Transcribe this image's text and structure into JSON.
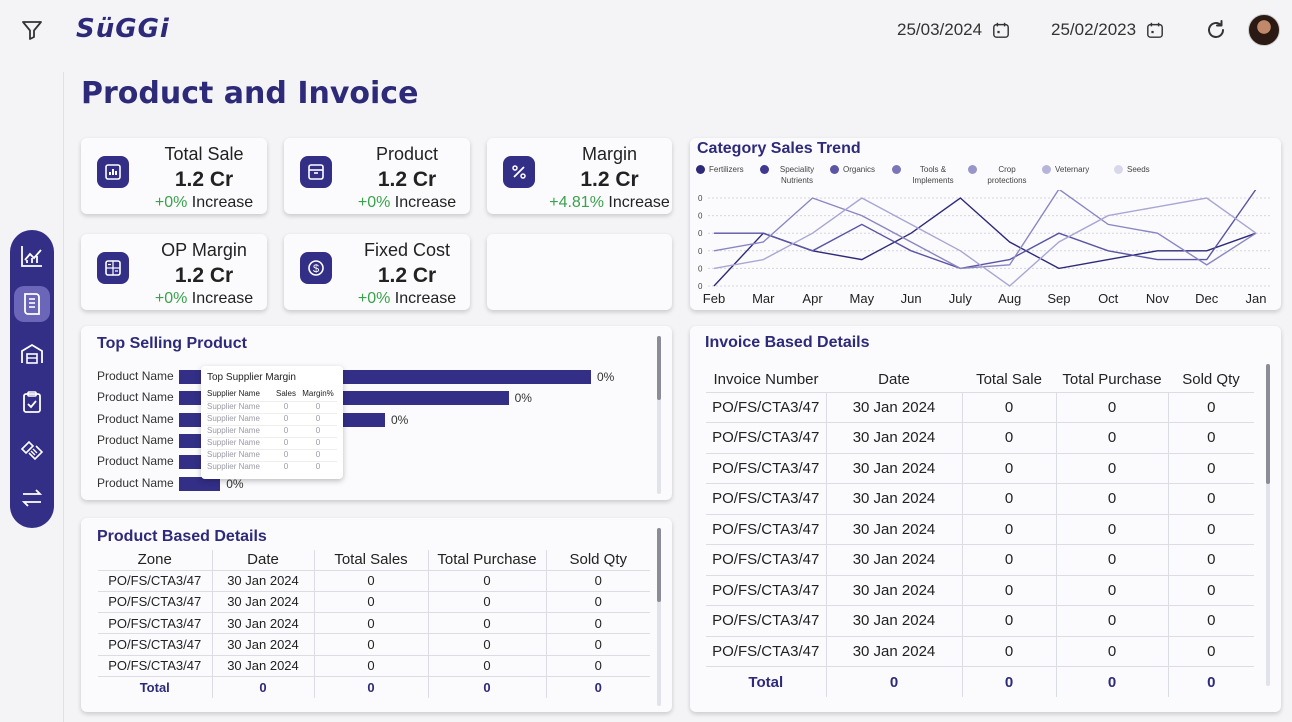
{
  "header": {
    "logo": "SüGGi",
    "date_from": "25/03/2024",
    "date_to": "25/02/2023"
  },
  "page": {
    "title": "Product and Invoice"
  },
  "sidebar": {
    "items": [
      {
        "icon": "analytics-icon"
      },
      {
        "icon": "document-icon",
        "active": true
      },
      {
        "icon": "warehouse-icon"
      },
      {
        "icon": "clipboard-check-icon"
      },
      {
        "icon": "handshake-icon"
      },
      {
        "icon": "transfer-icon"
      }
    ]
  },
  "kpis": [
    {
      "title": "Total Sale",
      "value": "1.2 Cr",
      "change": "+0%",
      "change_label": "Increase",
      "icon": "bar-chart-icon"
    },
    {
      "title": "Product",
      "value": "1.2 Cr",
      "change": "+0%",
      "change_label": "Increase",
      "icon": "archive-icon"
    },
    {
      "title": "Margin",
      "value": "1.2 Cr",
      "change": "+4.81%",
      "change_label": "Increase",
      "icon": "percent-icon"
    },
    {
      "title": "OP Margin",
      "value": "1.2 Cr",
      "change": "+0%",
      "change_label": "Increase",
      "icon": "calculator-icon"
    },
    {
      "title": "Fixed Cost",
      "value": "1.2 Cr",
      "change": "+0%",
      "change_label": "Increase",
      "icon": "dollar-coin-icon"
    }
  ],
  "category_trend": {
    "title": "Category Sales Trend",
    "legend": [
      {
        "label": "Fertilizers",
        "color": "#2e2a7a"
      },
      {
        "label": "Speciality Nutrients",
        "color": "#3f3a90"
      },
      {
        "label": "Organics",
        "color": "#5a55a4"
      },
      {
        "label": "Tools & Implements",
        "color": "#7a76b8"
      },
      {
        "label": "Crop protections",
        "color": "#9895c9"
      },
      {
        "label": "Veternary",
        "color": "#b6b4da"
      },
      {
        "label": "Seeds",
        "color": "#d8d7ec"
      }
    ],
    "y_ticks": [
      "0",
      "0",
      "0",
      "0",
      "0",
      "0"
    ],
    "months": [
      "Feb",
      "Mar",
      "Apr",
      "May",
      "Jun",
      "July",
      "Aug",
      "Sep",
      "Oct",
      "Nov",
      "Dec",
      "Jan"
    ]
  },
  "chart_data": {
    "type": "line",
    "title": "Category Sales Trend",
    "x": [
      "Feb",
      "Mar",
      "Apr",
      "May",
      "Jun",
      "July",
      "Aug",
      "Sep",
      "Oct",
      "Nov",
      "Dec",
      "Jan"
    ],
    "ylim": [
      0,
      5
    ],
    "series": [
      {
        "name": "Fertilizers",
        "values": [
          0,
          3,
          2,
          1.5,
          3,
          5,
          2.5,
          1,
          1.5,
          2,
          2,
          3
        ]
      },
      {
        "name": "Speciality Nutrients",
        "values": [
          3,
          3,
          2,
          3.5,
          2,
          1,
          1.5,
          3,
          2,
          1.5,
          1.5,
          5.5
        ]
      },
      {
        "name": "Organics",
        "values": [
          2,
          2.5,
          5,
          4,
          2.5,
          1,
          1.2,
          5.5,
          3.5,
          3,
          1.2,
          3
        ]
      },
      {
        "name": "Tools & Implements",
        "values": [
          1,
          1.5,
          3,
          5,
          3.5,
          2,
          0,
          2.5,
          4,
          4.5,
          5,
          3
        ]
      }
    ]
  },
  "top_selling": {
    "title": "Top Selling Product",
    "rows": [
      {
        "label": "Product Name",
        "value": 100,
        "pct": "0%"
      },
      {
        "label": "Product Name",
        "value": 80,
        "pct": "0%"
      },
      {
        "label": "Product Name",
        "value": 50,
        "pct": "0%"
      },
      {
        "label": "Product Name",
        "value": 35,
        "pct": ""
      },
      {
        "label": "Product Name",
        "value": 20,
        "pct": ""
      },
      {
        "label": "Product Name",
        "value": 10,
        "pct": "0%"
      }
    ],
    "tooltip": {
      "title": "Top Supplier Margin",
      "headers": [
        "Supplier Name",
        "Sales",
        "Margin%"
      ],
      "rows": [
        [
          "Supplier Name",
          "0",
          "0"
        ],
        [
          "Supplier Name",
          "0",
          "0"
        ],
        [
          "Supplier Name",
          "0",
          "0"
        ],
        [
          "Supplier Name",
          "0",
          "0"
        ],
        [
          "Supplier Name",
          "0",
          "0"
        ],
        [
          "Supplier Name",
          "0",
          "0"
        ]
      ]
    }
  },
  "product_details": {
    "title": "Product Based Details",
    "headers": [
      "Zone",
      "Date",
      "Total Sales",
      "Total Purchase",
      "Sold Qty"
    ],
    "rows": [
      [
        "PO/FS/CTA3/47",
        "30 Jan 2024",
        "0",
        "0",
        "0"
      ],
      [
        "PO/FS/CTA3/47",
        "30 Jan 2024",
        "0",
        "0",
        "0"
      ],
      [
        "PO/FS/CTA3/47",
        "30 Jan 2024",
        "0",
        "0",
        "0"
      ],
      [
        "PO/FS/CTA3/47",
        "30 Jan 2024",
        "0",
        "0",
        "0"
      ],
      [
        "PO/FS/CTA3/47",
        "30 Jan 2024",
        "0",
        "0",
        "0"
      ]
    ],
    "total": [
      "Total",
      "0",
      "0",
      "0",
      "0"
    ]
  },
  "invoice_details": {
    "title": "Invoice Based Details",
    "headers": [
      "Invoice Number",
      "Date",
      "Total Sale",
      "Total Purchase",
      "Sold Qty"
    ],
    "rows": [
      [
        "PO/FS/CTA3/47",
        "30 Jan 2024",
        "0",
        "0",
        "0"
      ],
      [
        "PO/FS/CTA3/47",
        "30 Jan 2024",
        "0",
        "0",
        "0"
      ],
      [
        "PO/FS/CTA3/47",
        "30 Jan 2024",
        "0",
        "0",
        "0"
      ],
      [
        "PO/FS/CTA3/47",
        "30 Jan 2024",
        "0",
        "0",
        "0"
      ],
      [
        "PO/FS/CTA3/47",
        "30 Jan 2024",
        "0",
        "0",
        "0"
      ],
      [
        "PO/FS/CTA3/47",
        "30 Jan 2024",
        "0",
        "0",
        "0"
      ],
      [
        "PO/FS/CTA3/47",
        "30 Jan 2024",
        "0",
        "0",
        "0"
      ],
      [
        "PO/FS/CTA3/47",
        "30 Jan 2024",
        "0",
        "0",
        "0"
      ],
      [
        "PO/FS/CTA3/47",
        "30 Jan 2024",
        "0",
        "0",
        "0"
      ]
    ],
    "total": [
      "Total",
      "0",
      "0",
      "0",
      "0"
    ]
  }
}
